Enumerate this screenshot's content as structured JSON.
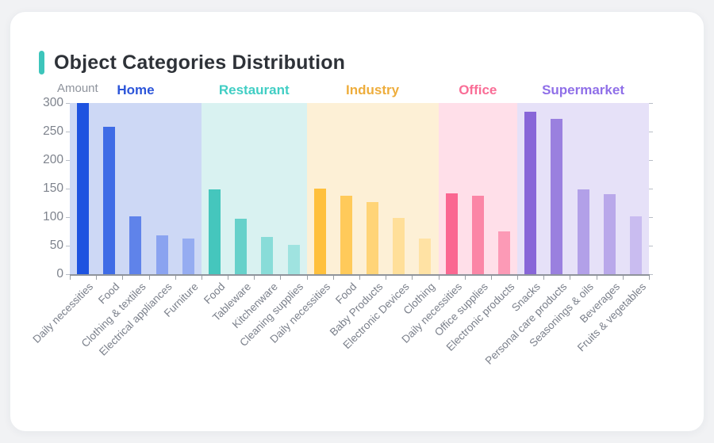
{
  "page": {
    "background": "#f1f2f4",
    "card_background": "#ffffff",
    "accent_color": "#3dc5bb",
    "title_color": "#2e3238"
  },
  "chart_data": {
    "type": "bar",
    "title": "Object Categories Distribution",
    "ylabel": "Amount",
    "ylim": [
      0,
      300
    ],
    "yticks": [
      0,
      50,
      100,
      150,
      200,
      250,
      300
    ],
    "grid": false,
    "legend_position": "none",
    "x_label_rotation": 45,
    "groups": [
      {
        "name": "Home",
        "label_color": "#2c55d9",
        "band_color": "#cdd8f5",
        "categories": [
          "Daily necessities",
          "Food",
          "Clothing & textiles",
          "Electrical appliances",
          "Furniture"
        ],
        "values": [
          300,
          258,
          102,
          68,
          63
        ],
        "bar_colors": [
          "#1e53e0",
          "#3f6ce6",
          "#5f83ea",
          "#8aa3f0",
          "#95acf1"
        ]
      },
      {
        "name": "Restaurant",
        "label_color": "#41cec4",
        "band_color": "#d9f2f1",
        "categories": [
          "Food",
          "Tableware",
          "Kitchenware",
          "Cleaning supplies"
        ],
        "values": [
          148,
          97,
          65,
          51
        ],
        "bar_colors": [
          "#45c6bd",
          "#66d1ca",
          "#88dcd8",
          "#9fe3e0"
        ]
      },
      {
        "name": "Industry",
        "label_color": "#eead3c",
        "band_color": "#fdf0d6",
        "categories": [
          "Daily necessities",
          "Food",
          "Baby Products",
          "Electronic Devices",
          "Clothing"
        ],
        "values": [
          150,
          138,
          126,
          99,
          63
        ],
        "bar_colors": [
          "#ffc03c",
          "#ffca5a",
          "#ffd477",
          "#ffdf99",
          "#ffe2a4"
        ]
      },
      {
        "name": "Office",
        "label_color": "#f96d96",
        "band_color": "#ffdfe9",
        "categories": [
          "Daily necessities",
          "Office supplies",
          "Electronic products"
        ],
        "values": [
          142,
          138,
          75
        ],
        "bar_colors": [
          "#fa6791",
          "#fb86a6",
          "#fc9ab6"
        ]
      },
      {
        "name": "Supermarket",
        "label_color": "#8f6fe8",
        "band_color": "#e6e1f8",
        "categories": [
          "Snacks",
          "Personal care products",
          "Seasonings & oils",
          "Beverages",
          "Fruits & vegetables"
        ],
        "values": [
          285,
          272,
          148,
          140,
          101
        ],
        "bar_colors": [
          "#8866d8",
          "#9a80df",
          "#b2a0e8",
          "#b9a8ea",
          "#c9bcf0"
        ]
      }
    ]
  }
}
